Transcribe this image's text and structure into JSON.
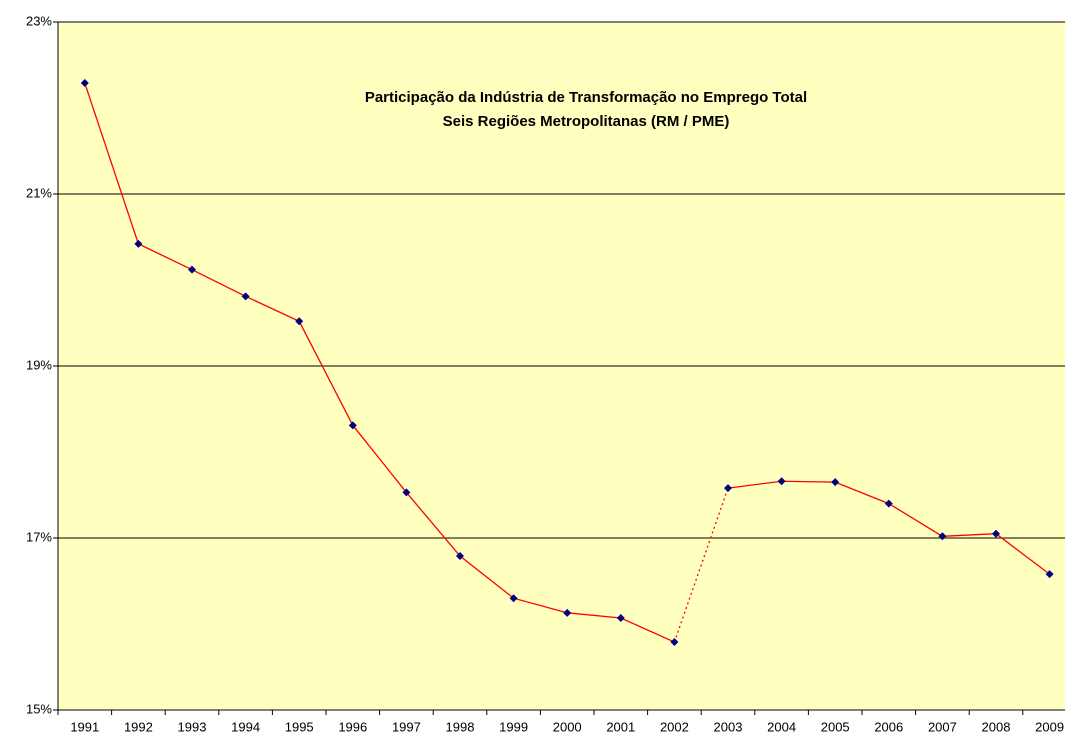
{
  "chart_data": {
    "type": "line",
    "title": "Participação da Indústria de Transformação no Emprego Total",
    "subtitle": "Seis Regiões Metropolitanas (RM / PME)",
    "categories": [
      "1991",
      "1992",
      "1993",
      "1994",
      "1995",
      "1996",
      "1997",
      "1998",
      "1999",
      "2000",
      "2001",
      "2002",
      "2003",
      "2004",
      "2005",
      "2006",
      "2007",
      "2008",
      "2009"
    ],
    "series": [
      {
        "name": "Participação",
        "color": "#ff0000",
        "marker_color": "#000080",
        "values": [
          22.29,
          20.42,
          20.12,
          19.81,
          19.52,
          18.31,
          17.53,
          16.79,
          16.3,
          16.13,
          16.07,
          15.79,
          17.58,
          17.66,
          17.65,
          17.4,
          17.02,
          17.05,
          16.58
        ]
      }
    ],
    "dashed_from": "2002",
    "ylim": [
      15,
      23
    ],
    "yticks": [
      {
        "value": 15,
        "label": "15%"
      },
      {
        "value": 17,
        "label": "17%"
      },
      {
        "value": 19,
        "label": "19%"
      },
      {
        "value": 21,
        "label": "21%"
      },
      {
        "value": 23,
        "label": "23%"
      }
    ],
    "grid": true,
    "background": "#ffffc0"
  }
}
